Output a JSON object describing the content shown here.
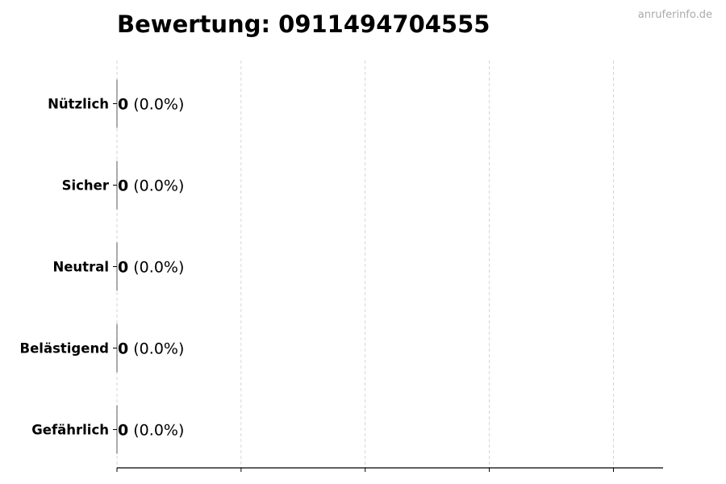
{
  "watermark": "anruferinfo.de",
  "chart_data": {
    "type": "bar",
    "orientation": "horizontal",
    "title": "Bewertung: 0911494704555",
    "xlabel": "",
    "ylabel": "",
    "categories": [
      "Nützlich",
      "Sicher",
      "Neutral",
      "Belästigend",
      "Gefährlich"
    ],
    "values": [
      0,
      0,
      0,
      0,
      0
    ],
    "data_labels": [
      {
        "count": "0",
        "percent": "(0.0%)"
      },
      {
        "count": "0",
        "percent": "(0.0%)"
      },
      {
        "count": "0",
        "percent": "(0.0%)"
      },
      {
        "count": "0",
        "percent": "(0.0%)"
      },
      {
        "count": "0",
        "percent": "(0.0%)"
      }
    ],
    "xlim": [
      0,
      4.4
    ],
    "xticks": [
      0,
      1,
      2,
      3,
      4
    ],
    "xtick_labels_shown": false,
    "grid": "x, dashed",
    "colors": {
      "grid": "#cccccc",
      "axis": "#000000",
      "bar_edge": "#333333",
      "watermark": "#aaaaaa"
    }
  }
}
